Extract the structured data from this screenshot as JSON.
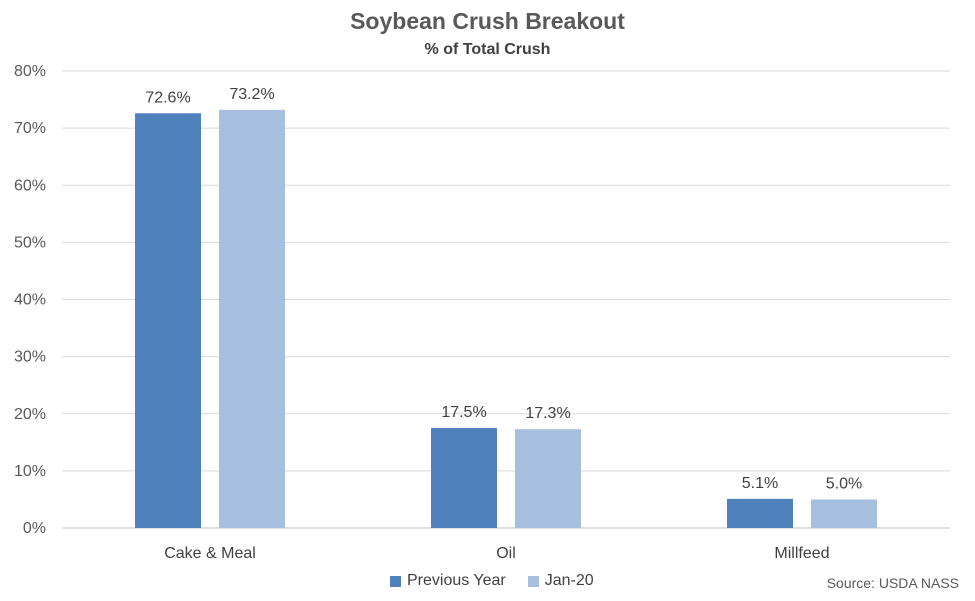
{
  "chart_data": {
    "type": "bar",
    "title": "Soybean Crush Breakout",
    "subtitle": "% of Total Crush",
    "categories": [
      "Cake & Meal",
      "Oil",
      "Millfeed"
    ],
    "series": [
      {
        "name": "Previous Year",
        "values": [
          72.6,
          17.5,
          5.1
        ],
        "color": "#4f81bd"
      },
      {
        "name": "Jan-20",
        "values": [
          73.2,
          17.3,
          5.0
        ],
        "color": "#a7bfde"
      }
    ],
    "ylim": [
      0,
      80
    ],
    "yticks": [
      0,
      10,
      20,
      30,
      40,
      50,
      60,
      70,
      80
    ],
    "ytick_suffix": "%",
    "data_label_suffix": "%",
    "grid": true,
    "legend_position": "bottom"
  },
  "source": "Source: USDA NASS"
}
